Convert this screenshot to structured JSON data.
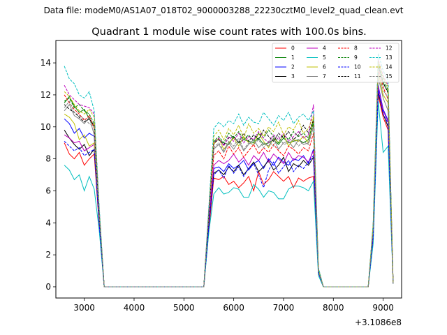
{
  "figure": {
    "suptitle": "Data file: modeM0/AS1A07_018T02_9000003288_22230cztM0_level2_quad_clean.evt"
  },
  "chart_data": {
    "type": "line",
    "title": "Quadrant 1 module wise count rates with 100.0s bins.",
    "xlabel": "",
    "ylabel": "",
    "x_offset_label": "+3.1086e8",
    "xlim": [
      2430,
      9370
    ],
    "ylim": [
      -0.7,
      15.4
    ],
    "xticks": [
      3000,
      4000,
      5000,
      6000,
      7000,
      8000,
      9000
    ],
    "yticks": [
      0,
      2,
      4,
      6,
      8,
      10,
      12,
      14
    ],
    "grid": false,
    "legend_position": "upper-right",
    "legend_columns": 4,
    "x": [
      2600,
      2700,
      2800,
      2900,
      3000,
      3100,
      3200,
      3300,
      3400,
      5400,
      5500,
      5600,
      5700,
      5800,
      5900,
      6000,
      6100,
      6200,
      6300,
      6400,
      6500,
      6600,
      6700,
      6800,
      6900,
      7000,
      7100,
      7200,
      7300,
      7400,
      7500,
      7600,
      7700,
      7800,
      8700,
      8800,
      8900,
      9000,
      9100,
      9200
    ],
    "series": [
      {
        "name": "0",
        "color": "#ff0000",
        "dash": "solid",
        "values": [
          9.0,
          8.3,
          8.0,
          8.4,
          7.6,
          8.0,
          8.3,
          3.8,
          0,
          0,
          3.5,
          6.8,
          6.7,
          6.9,
          6.4,
          6.6,
          6.2,
          6.5,
          6.9,
          6.0,
          7.2,
          6.4,
          6.7,
          7.2,
          6.9,
          6.6,
          6.9,
          6.2,
          6.8,
          6.6,
          6.8,
          6.9,
          0.9,
          0,
          0,
          2.9,
          12.0,
          10.6,
          9.8,
          0.2
        ]
      },
      {
        "name": "1",
        "color": "#008000",
        "dash": "solid",
        "values": [
          11.5,
          11.9,
          11.3,
          10.9,
          11.1,
          10.5,
          10.0,
          4.6,
          0,
          0,
          4.8,
          9.1,
          9.2,
          9.0,
          8.9,
          9.4,
          9.0,
          9.2,
          9.1,
          9.0,
          9.3,
          8.9,
          9.0,
          9.2,
          8.9,
          9.3,
          9.0,
          9.1,
          9.2,
          9.0,
          9.2,
          10.4,
          1.1,
          0,
          0,
          3.8,
          13.9,
          12.7,
          12.2,
          0.2
        ]
      },
      {
        "name": "2",
        "color": "#0000ff",
        "dash": "solid",
        "values": [
          10.5,
          10.2,
          9.6,
          9.9,
          9.3,
          9.6,
          9.4,
          4.3,
          0,
          0,
          4.2,
          7.4,
          7.5,
          7.2,
          7.7,
          7.4,
          7.6,
          7.9,
          7.3,
          7.7,
          7.9,
          7.4,
          8.0,
          7.6,
          8.1,
          7.8,
          7.6,
          8.0,
          7.9,
          8.2,
          7.7,
          8.6,
          1.0,
          0,
          0,
          3.4,
          12.6,
          11.1,
          10.4,
          0.2
        ]
      },
      {
        "name": "3",
        "color": "#000000",
        "dash": "solid",
        "values": [
          9.8,
          9.3,
          8.9,
          8.6,
          8.9,
          8.2,
          8.6,
          4.0,
          0,
          0,
          3.9,
          7.1,
          7.3,
          7.0,
          7.5,
          7.2,
          7.6,
          7.0,
          7.4,
          7.8,
          7.2,
          7.5,
          7.9,
          7.3,
          7.6,
          8.1,
          7.2,
          7.7,
          7.5,
          7.9,
          7.6,
          8.1,
          0.9,
          0,
          0,
          3.2,
          12.2,
          10.8,
          10.0,
          0.2
        ]
      },
      {
        "name": "4",
        "color": "#bf00bf",
        "dash": "solid",
        "values": [
          9.5,
          9.3,
          9.0,
          9.1,
          8.5,
          8.7,
          8.9,
          4.1,
          0,
          0,
          4.1,
          7.6,
          7.9,
          7.7,
          7.9,
          8.3,
          7.8,
          8.1,
          7.6,
          8.2,
          7.9,
          8.4,
          7.8,
          8.3,
          8.0,
          7.7,
          8.4,
          7.9,
          8.2,
          8.1,
          7.8,
          8.5,
          1.0,
          0,
          0,
          3.3,
          12.5,
          11.0,
          10.3,
          0.2
        ]
      },
      {
        "name": "5",
        "color": "#00bfbf",
        "dash": "solid",
        "values": [
          7.6,
          7.3,
          6.7,
          7.0,
          6.0,
          6.9,
          6.1,
          3.5,
          0,
          0,
          3.4,
          5.8,
          6.2,
          5.8,
          5.9,
          6.2,
          6.1,
          5.6,
          5.6,
          6.4,
          6.1,
          5.6,
          6.0,
          5.9,
          5.5,
          5.5,
          6.1,
          6.3,
          6.3,
          6.2,
          6.0,
          6.6,
          0.7,
          0,
          0,
          2.7,
          11.6,
          8.4,
          8.8,
          0.2
        ]
      },
      {
        "name": "6",
        "color": "#bfbf00",
        "dash": "solid",
        "values": [
          10.8,
          10.6,
          10.2,
          9.2,
          9.5,
          8.8,
          9.0,
          4.5,
          0,
          0,
          4.5,
          8.9,
          9.3,
          8.6,
          9.0,
          9.3,
          8.8,
          9.4,
          9.0,
          8.9,
          9.6,
          9.1,
          8.7,
          9.3,
          9.0,
          9.5,
          8.8,
          9.2,
          9.1,
          9.4,
          9.0,
          10.6,
          1.0,
          0,
          0,
          3.7,
          13.4,
          12.0,
          11.5,
          0.2
        ]
      },
      {
        "name": "7",
        "color": "#808080",
        "dash": "solid",
        "values": [
          11.0,
          11.4,
          10.7,
          10.5,
          10.2,
          10.6,
          9.5,
          4.4,
          0,
          0,
          4.5,
          8.6,
          8.9,
          8.4,
          9.0,
          8.6,
          9.1,
          8.5,
          8.9,
          9.2,
          8.7,
          9.0,
          8.8,
          9.3,
          8.6,
          9.0,
          9.1,
          8.7,
          9.2,
          8.9,
          9.0,
          10.1,
          1.0,
          0,
          0,
          3.6,
          13.1,
          11.8,
          11.0,
          0.2
        ]
      },
      {
        "name": "8",
        "color": "#ff0000",
        "dash": "dashed",
        "values": [
          12.0,
          11.5,
          11.1,
          10.8,
          10.4,
          10.7,
          9.9,
          4.7,
          0,
          0,
          4.6,
          8.2,
          8.5,
          8.0,
          8.8,
          8.3,
          8.7,
          8.1,
          8.5,
          8.9,
          8.3,
          8.7,
          8.4,
          8.9,
          8.5,
          8.2,
          8.8,
          8.6,
          8.3,
          8.7,
          8.5,
          9.6,
          1.0,
          0,
          0,
          3.6,
          13.6,
          12.5,
          11.7,
          0.2
        ]
      },
      {
        "name": "9",
        "color": "#008000",
        "dash": "dashed",
        "values": [
          11.6,
          11.8,
          11.2,
          11.4,
          11.0,
          10.8,
          10.2,
          4.6,
          0,
          0,
          4.7,
          9.1,
          9.4,
          9.0,
          9.6,
          9.3,
          9.7,
          9.2,
          9.5,
          9.1,
          9.6,
          9.3,
          9.8,
          9.4,
          9.0,
          9.5,
          9.2,
          9.7,
          9.4,
          9.6,
          9.3,
          10.2,
          1.1,
          0,
          0,
          3.8,
          14.0,
          13.0,
          12.3,
          0.2
        ]
      },
      {
        "name": "10",
        "color": "#0000ff",
        "dash": "dashed",
        "values": [
          9.1,
          8.8,
          8.5,
          8.7,
          8.2,
          8.4,
          8.6,
          3.9,
          0,
          0,
          3.8,
          7.0,
          7.3,
          6.8,
          7.6,
          7.1,
          7.5,
          6.9,
          7.4,
          7.7,
          7.0,
          6.2,
          7.3,
          7.8,
          7.1,
          7.5,
          7.9,
          7.2,
          7.6,
          7.4,
          7.8,
          8.2,
          0.9,
          0,
          0,
          3.1,
          12.3,
          10.8,
          10.2,
          0.2
        ]
      },
      {
        "name": "11",
        "color": "#000000",
        "dash": "dashed",
        "values": [
          11.4,
          11.1,
          10.9,
          10.6,
          10.3,
          10.5,
          10.1,
          4.6,
          0,
          0,
          4.5,
          9.0,
          9.2,
          8.9,
          9.3,
          9.4,
          9.0,
          9.6,
          9.1,
          9.5,
          9.2,
          9.8,
          9.4,
          9.1,
          9.6,
          9.3,
          9.7,
          9.2,
          9.5,
          10.1,
          9.6,
          10.4,
          1.1,
          0,
          0,
          3.7,
          13.8,
          12.8,
          12.1,
          0.2
        ]
      },
      {
        "name": "12",
        "color": "#bf00bf",
        "dash": "dashed",
        "values": [
          12.6,
          12.0,
          11.7,
          11.4,
          11.3,
          11.2,
          10.8,
          4.8,
          0,
          0,
          4.9,
          9.0,
          9.3,
          8.8,
          9.4,
          9.1,
          9.6,
          9.0,
          9.4,
          9.2,
          9.7,
          9.3,
          9.0,
          9.5,
          9.2,
          9.6,
          9.1,
          9.4,
          9.7,
          9.3,
          9.5,
          11.4,
          1.1,
          0,
          0,
          3.9,
          14.2,
          13.2,
          12.6,
          0.2
        ]
      },
      {
        "name": "13",
        "color": "#00bfbf",
        "dash": "dashed",
        "values": [
          13.8,
          13.0,
          12.7,
          12.0,
          11.8,
          12.2,
          11.0,
          5.0,
          0,
          0,
          5.0,
          9.9,
          10.3,
          10.0,
          10.4,
          10.2,
          10.8,
          10.1,
          10.6,
          10.3,
          10.2,
          10.9,
          10.5,
          10.1,
          10.7,
          10.4,
          10.9,
          10.2,
          10.6,
          10.8,
          10.4,
          11.0,
          1.2,
          0,
          0,
          4.0,
          14.6,
          13.5,
          12.9,
          0.2
        ]
      },
      {
        "name": "14",
        "color": "#bfbf00",
        "dash": "dashed",
        "values": [
          12.2,
          11.9,
          11.4,
          11.0,
          10.8,
          11.1,
          10.6,
          4.7,
          0,
          0,
          4.7,
          9.4,
          9.8,
          9.2,
          9.9,
          9.5,
          10.1,
          9.3,
          10.2,
          9.6,
          9.9,
          9.4,
          10.0,
          9.7,
          10.3,
          9.5,
          10.0,
          9.8,
          10.4,
          9.6,
          9.9,
          10.7,
          1.1,
          0,
          0,
          3.9,
          14.1,
          13.1,
          12.5,
          0.2
        ]
      },
      {
        "name": "15",
        "color": "#808080",
        "dash": "dashed",
        "values": [
          11.2,
          11.6,
          10.9,
          10.7,
          10.5,
          10.2,
          10.0,
          4.5,
          0,
          0,
          4.6,
          8.7,
          9.0,
          8.5,
          9.1,
          8.8,
          9.3,
          8.6,
          9.0,
          8.9,
          9.2,
          8.7,
          9.1,
          8.8,
          9.4,
          8.9,
          9.0,
          9.2,
          8.8,
          9.1,
          8.9,
          10.0,
          1.0,
          0,
          0,
          3.6,
          13.5,
          12.3,
          11.8,
          0.2
        ]
      }
    ]
  }
}
